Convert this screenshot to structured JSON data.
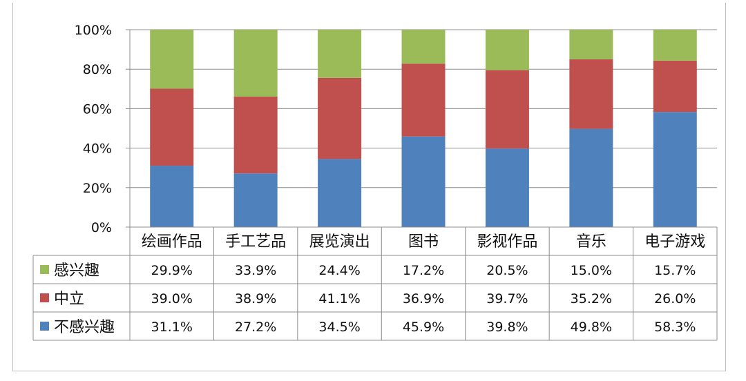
{
  "chart_data": {
    "type": "bar",
    "stacked": true,
    "title": "",
    "xlabel": "",
    "ylabel": "",
    "ylim": [
      0,
      100
    ],
    "y_ticks": [
      "0%",
      "20%",
      "40%",
      "60%",
      "80%",
      "100%"
    ],
    "y_tick_values": [
      0,
      20,
      40,
      60,
      80,
      100
    ],
    "grid": true,
    "categories": [
      "绘画作品",
      "手工艺品",
      "展览演出",
      "图书",
      "影视作品",
      "音乐",
      "电子游戏"
    ],
    "series": [
      {
        "name": "不感兴趣",
        "color": "#4f81bd",
        "values": [
          31.1,
          27.2,
          34.5,
          45.9,
          39.8,
          49.8,
          58.3
        ],
        "labels": [
          "31.1%",
          "27.2%",
          "34.5%",
          "45.9%",
          "39.8%",
          "49.8%",
          "58.3%"
        ]
      },
      {
        "name": "中立",
        "color": "#c0504d",
        "values": [
          39.0,
          38.9,
          41.1,
          36.9,
          39.7,
          35.2,
          26.0
        ],
        "labels": [
          "39.0%",
          "38.9%",
          "41.1%",
          "36.9%",
          "39.7%",
          "35.2%",
          "26.0%"
        ]
      },
      {
        "name": "感兴趣",
        "color": "#9bbb59",
        "values": [
          29.9,
          33.9,
          24.4,
          17.2,
          20.5,
          15.0,
          15.7
        ],
        "labels": [
          "29.9%",
          "33.9%",
          "24.4%",
          "17.2%",
          "20.5%",
          "15.0%",
          "15.7%"
        ]
      }
    ],
    "data_table": true,
    "data_table_row_order": [
      "感兴趣",
      "中立",
      "不感兴趣"
    ]
  }
}
